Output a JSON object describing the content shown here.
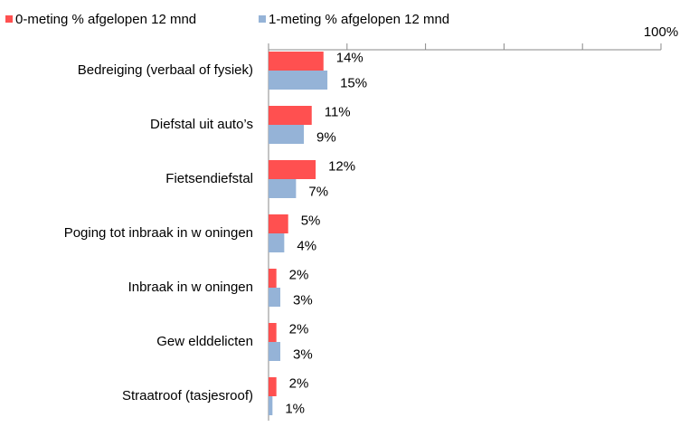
{
  "chart_data": {
    "type": "bar",
    "orientation": "horizontal",
    "categories": [
      "Bedreiging (verbaal of fysiek)",
      "Diefstal uit auto’s",
      "Fietsendiefstal",
      "Poging tot inbraak in w oningen",
      "Inbraak in w oningen",
      "Gew elddelicten",
      "Straatroof (tasjesroof)"
    ],
    "series": [
      {
        "name": "0-meting % afgelopen 12 mnd",
        "color": "#ff5050",
        "values": [
          14,
          11,
          12,
          5,
          2,
          2,
          2
        ],
        "value_labels": [
          "14%",
          "11%",
          "12%",
          "5%",
          "2%",
          "2%",
          "2%"
        ]
      },
      {
        "name": "1-meting % afgelopen 12 mnd",
        "color": "#95b3d7",
        "values": [
          15,
          9,
          7,
          4,
          3,
          3,
          1
        ],
        "value_labels": [
          "15%",
          "9%",
          "7%",
          "4%",
          "3%",
          "3%",
          "1%"
        ]
      }
    ],
    "xlim": [
      0,
      100
    ],
    "xticks": [
      0,
      20,
      40,
      60,
      80,
      {
        "value": 100,
        "label": "100%"
      }
    ],
    "legend": "top-left"
  }
}
